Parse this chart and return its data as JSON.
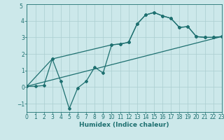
{
  "xlabel": "Humidex (Indice chaleur)",
  "bg_color": "#cce8ea",
  "grid_color": "#aacdd0",
  "line_color": "#1e7070",
  "line1_x": [
    0,
    1,
    2,
    3,
    4,
    5,
    6,
    7,
    8,
    9,
    10,
    11,
    12,
    13,
    14,
    15,
    16,
    17,
    18,
    19,
    20,
    21,
    22,
    23
  ],
  "line1_y": [
    0.05,
    0.05,
    0.1,
    1.7,
    0.35,
    -1.3,
    -0.05,
    0.35,
    1.2,
    0.85,
    2.55,
    2.6,
    2.7,
    3.8,
    4.35,
    4.5,
    4.3,
    4.15,
    3.6,
    3.65,
    3.05,
    3.0,
    3.0,
    3.05
  ],
  "line2_x": [
    0,
    3,
    10,
    11,
    12,
    13,
    14,
    15,
    16,
    17,
    18,
    19,
    20,
    21,
    22,
    23
  ],
  "line2_y": [
    0.05,
    1.7,
    2.55,
    2.6,
    2.7,
    3.8,
    4.35,
    4.5,
    4.3,
    4.15,
    3.6,
    3.65,
    3.05,
    3.0,
    3.0,
    3.05
  ],
  "line3_x": [
    0,
    23
  ],
  "line3_y": [
    0.05,
    3.05
  ],
  "xlim": [
    0,
    23
  ],
  "ylim": [
    -1.5,
    5.0
  ],
  "yticks": [
    -1,
    0,
    1,
    2,
    3,
    4
  ],
  "xticks": [
    0,
    1,
    2,
    3,
    4,
    5,
    6,
    7,
    8,
    9,
    10,
    11,
    12,
    13,
    14,
    15,
    16,
    17,
    18,
    19,
    20,
    21,
    22,
    23
  ],
  "xlabel_fontsize": 6.5,
  "tick_fontsize": 5.5,
  "lw": 0.9,
  "ms": 2.0
}
